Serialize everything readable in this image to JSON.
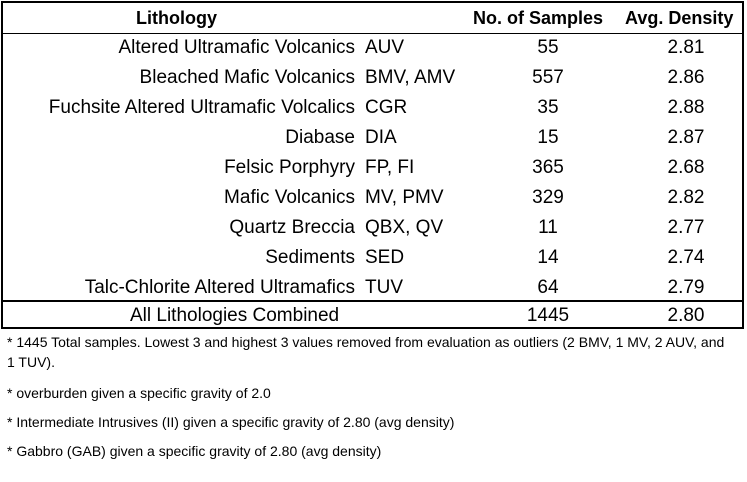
{
  "table": {
    "headers": {
      "lithology": "Lithology",
      "samples": "No. of Samples",
      "density": "Avg. Density"
    },
    "rows": [
      {
        "name": "Altered Ultramafic Volcanics",
        "code": "AUV",
        "samples": "55",
        "density": "2.81"
      },
      {
        "name": "Bleached Mafic Volcanics",
        "code": "BMV, AMV",
        "samples": "557",
        "density": "2.86"
      },
      {
        "name": "Fuchsite Altered Ultramafic Volcalics",
        "code": "CGR",
        "samples": "35",
        "density": "2.88"
      },
      {
        "name": "Diabase",
        "code": "DIA",
        "samples": "15",
        "density": "2.87"
      },
      {
        "name": "Felsic Porphyry",
        "code": "FP, FI",
        "samples": "365",
        "density": "2.68"
      },
      {
        "name": "Mafic Volcanics",
        "code": "MV, PMV",
        "samples": "329",
        "density": "2.82"
      },
      {
        "name": "Quartz Breccia",
        "code": "QBX, QV",
        "samples": "11",
        "density": "2.77"
      },
      {
        "name": "Sediments",
        "code": "SED",
        "samples": "14",
        "density": "2.74"
      },
      {
        "name": "Talc-Chlorite Altered Ultramafics",
        "code": "TUV",
        "samples": "64",
        "density": "2.79"
      }
    ],
    "total": {
      "name": "All Lithologies Combined",
      "samples": "1445",
      "density": "2.80"
    }
  },
  "notes": [
    "* 1445 Total samples. Lowest 3 and highest 3 values removed from evaluation as outliers (2 BMV, 1  MV,  2 AUV, and 1 TUV).",
    "* overburden given a specific gravity of 2.0",
    "* Intermediate Intrusives (II) given a specific gravity of 2.80 (avg density)",
    "* Gabbro (GAB) given a specific gravity of 2.80 (avg density)"
  ]
}
